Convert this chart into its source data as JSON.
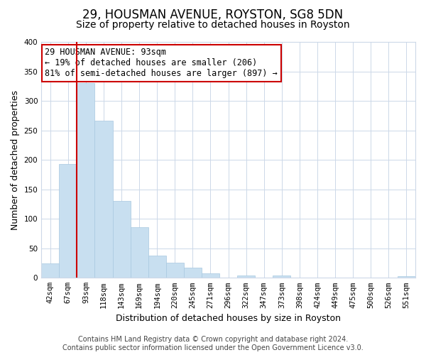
{
  "title": "29, HOUSMAN AVENUE, ROYSTON, SG8 5DN",
  "subtitle": "Size of property relative to detached houses in Royston",
  "xlabel": "Distribution of detached houses by size in Royston",
  "ylabel": "Number of detached properties",
  "bin_labels": [
    "42sqm",
    "67sqm",
    "93sqm",
    "118sqm",
    "143sqm",
    "169sqm",
    "194sqm",
    "220sqm",
    "245sqm",
    "271sqm",
    "296sqm",
    "322sqm",
    "347sqm",
    "373sqm",
    "398sqm",
    "424sqm",
    "449sqm",
    "475sqm",
    "500sqm",
    "526sqm",
    "551sqm"
  ],
  "bar_heights": [
    25,
    193,
    330,
    266,
    130,
    86,
    38,
    26,
    17,
    8,
    0,
    4,
    0,
    4,
    0,
    0,
    0,
    0,
    0,
    0,
    3
  ],
  "bar_color": "#c8dff0",
  "bar_edge_color": "#a8c8e0",
  "highlight_bar_index": 2,
  "highlight_color": "#cc0000",
  "ylim": [
    0,
    400
  ],
  "yticks": [
    0,
    50,
    100,
    150,
    200,
    250,
    300,
    350,
    400
  ],
  "annotation_title": "29 HOUSMAN AVENUE: 93sqm",
  "annotation_line1": "← 19% of detached houses are smaller (206)",
  "annotation_line2": "81% of semi-detached houses are larger (897) →",
  "footer_line1": "Contains HM Land Registry data © Crown copyright and database right 2024.",
  "footer_line2": "Contains public sector information licensed under the Open Government Licence v3.0.",
  "background_color": "#ffffff",
  "grid_color": "#ccd8e8",
  "title_fontsize": 12,
  "subtitle_fontsize": 10,
  "axis_label_fontsize": 9,
  "tick_fontsize": 7.5,
  "annotation_fontsize": 8.5,
  "footer_fontsize": 7
}
